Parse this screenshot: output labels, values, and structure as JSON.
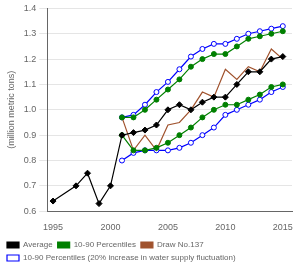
{
  "chart_data": {
    "type": "line",
    "ylabel": "(million metric tons)",
    "x": [
      1995,
      1997,
      1998,
      1999,
      2000,
      2001,
      2002,
      2003,
      2004,
      2005,
      2006,
      2007,
      2008,
      2009,
      2010,
      2011,
      2012,
      2013,
      2014,
      2015
    ],
    "series": [
      {
        "name": "Average",
        "color": "#000000",
        "marker": "diamond",
        "values": [
          0.64,
          0.7,
          0.75,
          0.63,
          0.7,
          0.9,
          0.91,
          0.92,
          0.94,
          1.0,
          1.02,
          1.0,
          1.03,
          1.05,
          1.05,
          1.1,
          1.15,
          1.15,
          1.2,
          1.21
        ]
      },
      {
        "name": "10-90 Percentiles",
        "color": "#008000",
        "marker": "circle",
        "values": [
          null,
          null,
          null,
          null,
          null,
          0.97,
          0.97,
          1.0,
          1.04,
          1.08,
          1.12,
          1.17,
          1.2,
          1.22,
          1.22,
          1.25,
          1.28,
          1.29,
          1.3,
          1.31
        ]
      },
      {
        "name": "10-90 Percentiles",
        "color": "#008000",
        "marker": "circle",
        "values": [
          null,
          null,
          null,
          null,
          null,
          0.9,
          0.84,
          0.84,
          0.85,
          0.87,
          0.9,
          0.93,
          0.97,
          1.0,
          1.02,
          1.02,
          1.04,
          1.06,
          1.09,
          1.1
        ]
      },
      {
        "name": "Draw No.137",
        "color": "#A0522D",
        "marker": "none",
        "values": [
          null,
          null,
          null,
          null,
          null,
          0.97,
          0.84,
          0.9,
          0.84,
          0.94,
          0.95,
          1.0,
          1.07,
          1.05,
          1.16,
          1.12,
          1.17,
          1.15,
          1.24,
          1.2
        ]
      },
      {
        "name": "10-90 Percentiles (20% increase in water supply fluctuation)",
        "color": "#0000FF",
        "marker": "open_circle",
        "values": [
          null,
          null,
          null,
          null,
          null,
          0.97,
          0.98,
          1.02,
          1.07,
          1.11,
          1.16,
          1.21,
          1.24,
          1.26,
          1.26,
          1.28,
          1.3,
          1.31,
          1.32,
          1.33
        ]
      },
      {
        "name": "10-90 Percentiles (20% increase in water supply fluctuation)",
        "color": "#0000FF",
        "marker": "open_circle",
        "values": [
          null,
          null,
          null,
          null,
          null,
          0.8,
          0.83,
          0.84,
          0.84,
          0.84,
          0.85,
          0.87,
          0.9,
          0.93,
          0.98,
          1.0,
          1.02,
          1.04,
          1.07,
          1.09
        ]
      }
    ],
    "xlim": [
      1994.5,
      2015.8
    ],
    "xticks": [
      1995,
      2000,
      2005,
      2010,
      2015
    ],
    "ylim": [
      0.6,
      1.4
    ],
    "yticks": [
      0.6,
      0.7,
      0.8,
      0.9,
      {
        "value": 1,
        "label": "1.0"
      },
      1.1,
      1.2,
      1.3,
      1.4
    ],
    "grid": "y",
    "legend": "bottom"
  }
}
